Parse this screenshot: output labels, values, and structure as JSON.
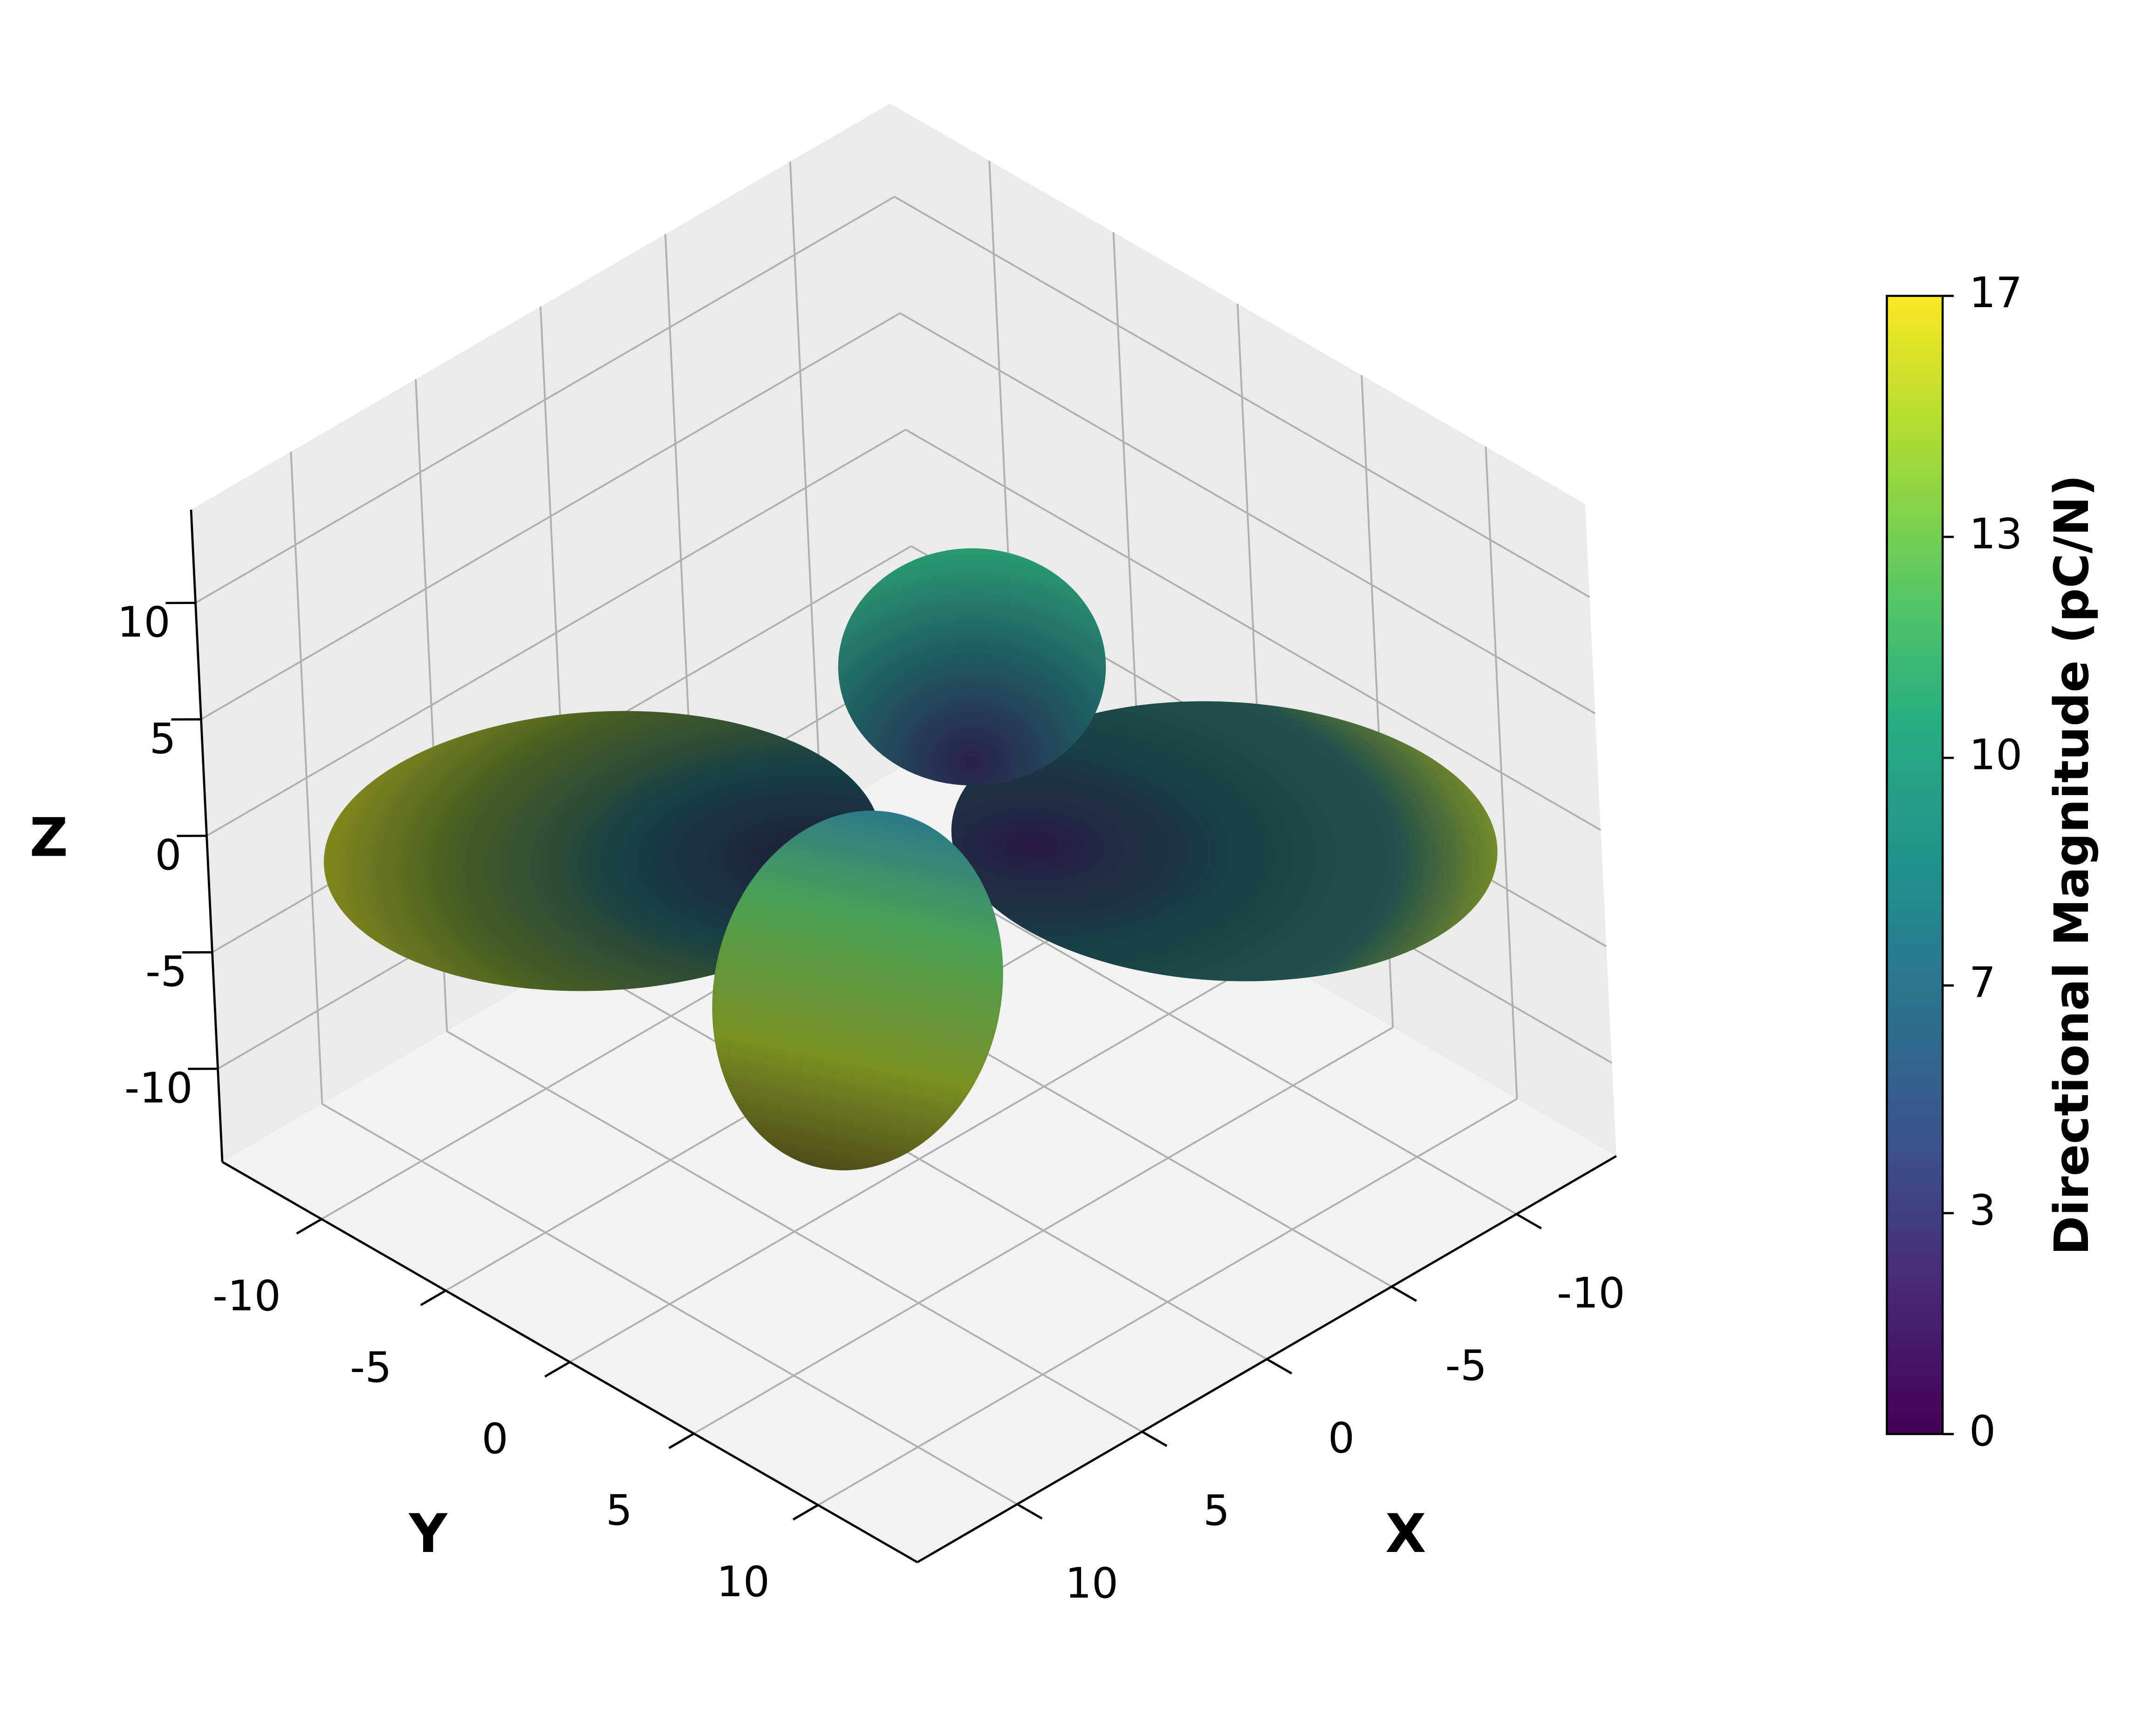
{
  "chart_data": {
    "type": "surface3d",
    "x_label": "X",
    "y_label": "Y",
    "z_label": "Z",
    "xlim": [
      -14,
      14
    ],
    "ylim": [
      -14,
      14
    ],
    "zlim": [
      -14,
      14
    ],
    "xticks": [
      -10,
      -5,
      0,
      5,
      10
    ],
    "yticks": [
      -10,
      -5,
      0,
      5,
      10
    ],
    "zticks": [
      -10,
      -5,
      0,
      5,
      10
    ],
    "grid": true,
    "colorbar": {
      "label": "Directional Magnitude (pC/N)",
      "colormap": "viridis",
      "lim": [
        0,
        17
      ],
      "ticks": [
        0,
        {
          "value": 3.3,
          "label": "3"
        },
        {
          "value": 6.7,
          "label": "7"
        },
        {
          "value": 10.1,
          "label": "10"
        },
        {
          "value": 13.4,
          "label": "13"
        },
        17
      ]
    }
  }
}
